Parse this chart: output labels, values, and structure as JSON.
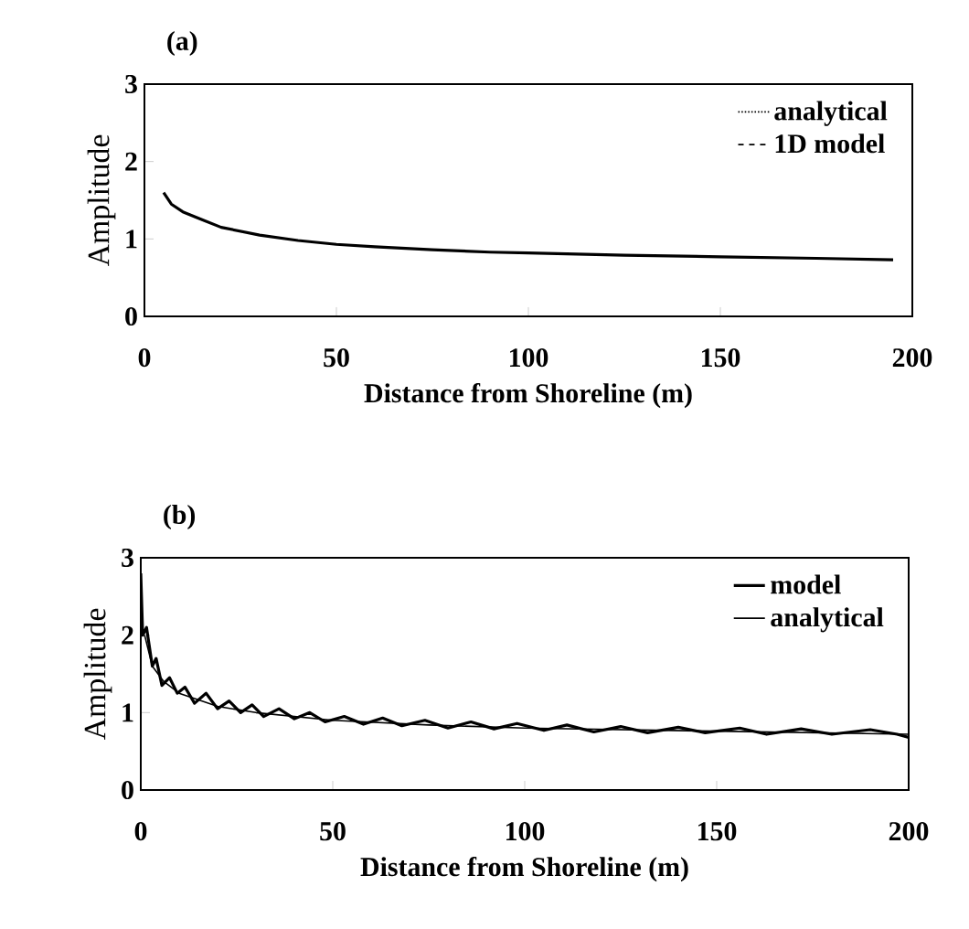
{
  "chart_data": [
    {
      "type": "line",
      "title": "(a)",
      "xlabel": "Distance from Shoreline (m)",
      "ylabel": "Amplitude",
      "xlim": [
        0,
        200
      ],
      "ylim": [
        0,
        3
      ],
      "xticks": [
        0,
        50,
        100,
        150,
        200
      ],
      "yticks": [
        0,
        1,
        2,
        3
      ],
      "legend": "top right",
      "series": [
        {
          "color": "#000000",
          "line_style": "solid",
          "x": [
            5,
            7,
            10,
            15,
            20,
            30,
            40,
            50,
            60,
            75,
            90,
            100,
            125,
            150,
            175,
            195
          ],
          "values": [
            1.6,
            1.45,
            1.35,
            1.25,
            1.15,
            1.05,
            0.98,
            0.93,
            0.9,
            0.86,
            0.83,
            0.82,
            0.79,
            0.77,
            0.75,
            0.73
          ]
        },
        {
          "name": "analytical",
          "color": "#000000",
          "line_style": "dotted",
          "values": [
            null
          ]
        },
        {
          "name": "1D model",
          "color": "#000000",
          "line_style": "dashed",
          "values": [
            null
          ]
        }
      ]
    },
    {
      "type": "line",
      "title": "(b)",
      "xlabel": "Distance from Shoreline (m)",
      "ylabel": "Amplitude",
      "xlim": [
        0,
        200
      ],
      "ylim": [
        0,
        3
      ],
      "xticks": [
        0,
        50,
        100,
        150,
        200
      ],
      "yticks": [
        0,
        1,
        2,
        3
      ],
      "legend": "top right",
      "series": [
        {
          "name": "model",
          "color": "#000000",
          "line_style": "solid",
          "x": [
            0,
            0.5,
            1.5,
            3,
            4,
            5.5,
            7.5,
            9.5,
            11.5,
            14,
            17,
            20,
            23,
            26,
            29,
            32,
            36,
            40,
            44,
            48,
            53,
            58,
            63,
            68,
            74,
            80,
            86,
            92,
            98,
            105,
            111,
            118,
            125,
            132,
            140,
            147,
            156,
            163,
            172,
            180,
            190,
            197,
            200
          ],
          "values": [
            2.8,
            2.0,
            2.1,
            1.6,
            1.7,
            1.35,
            1.45,
            1.25,
            1.33,
            1.12,
            1.25,
            1.05,
            1.15,
            1.0,
            1.1,
            0.95,
            1.05,
            0.92,
            1.0,
            0.88,
            0.95,
            0.85,
            0.93,
            0.83,
            0.9,
            0.8,
            0.88,
            0.79,
            0.86,
            0.77,
            0.84,
            0.75,
            0.82,
            0.74,
            0.81,
            0.74,
            0.8,
            0.72,
            0.79,
            0.72,
            0.78,
            0.72,
            0.68
          ]
        },
        {
          "name": "analytical",
          "color": "#000000",
          "line_style": "solid",
          "x": [
            1,
            3,
            6,
            10,
            20,
            30,
            50,
            75,
            100,
            150,
            200
          ],
          "values": [
            2.0,
            1.6,
            1.4,
            1.25,
            1.08,
            1.0,
            0.9,
            0.84,
            0.8,
            0.76,
            0.72
          ]
        }
      ]
    }
  ]
}
